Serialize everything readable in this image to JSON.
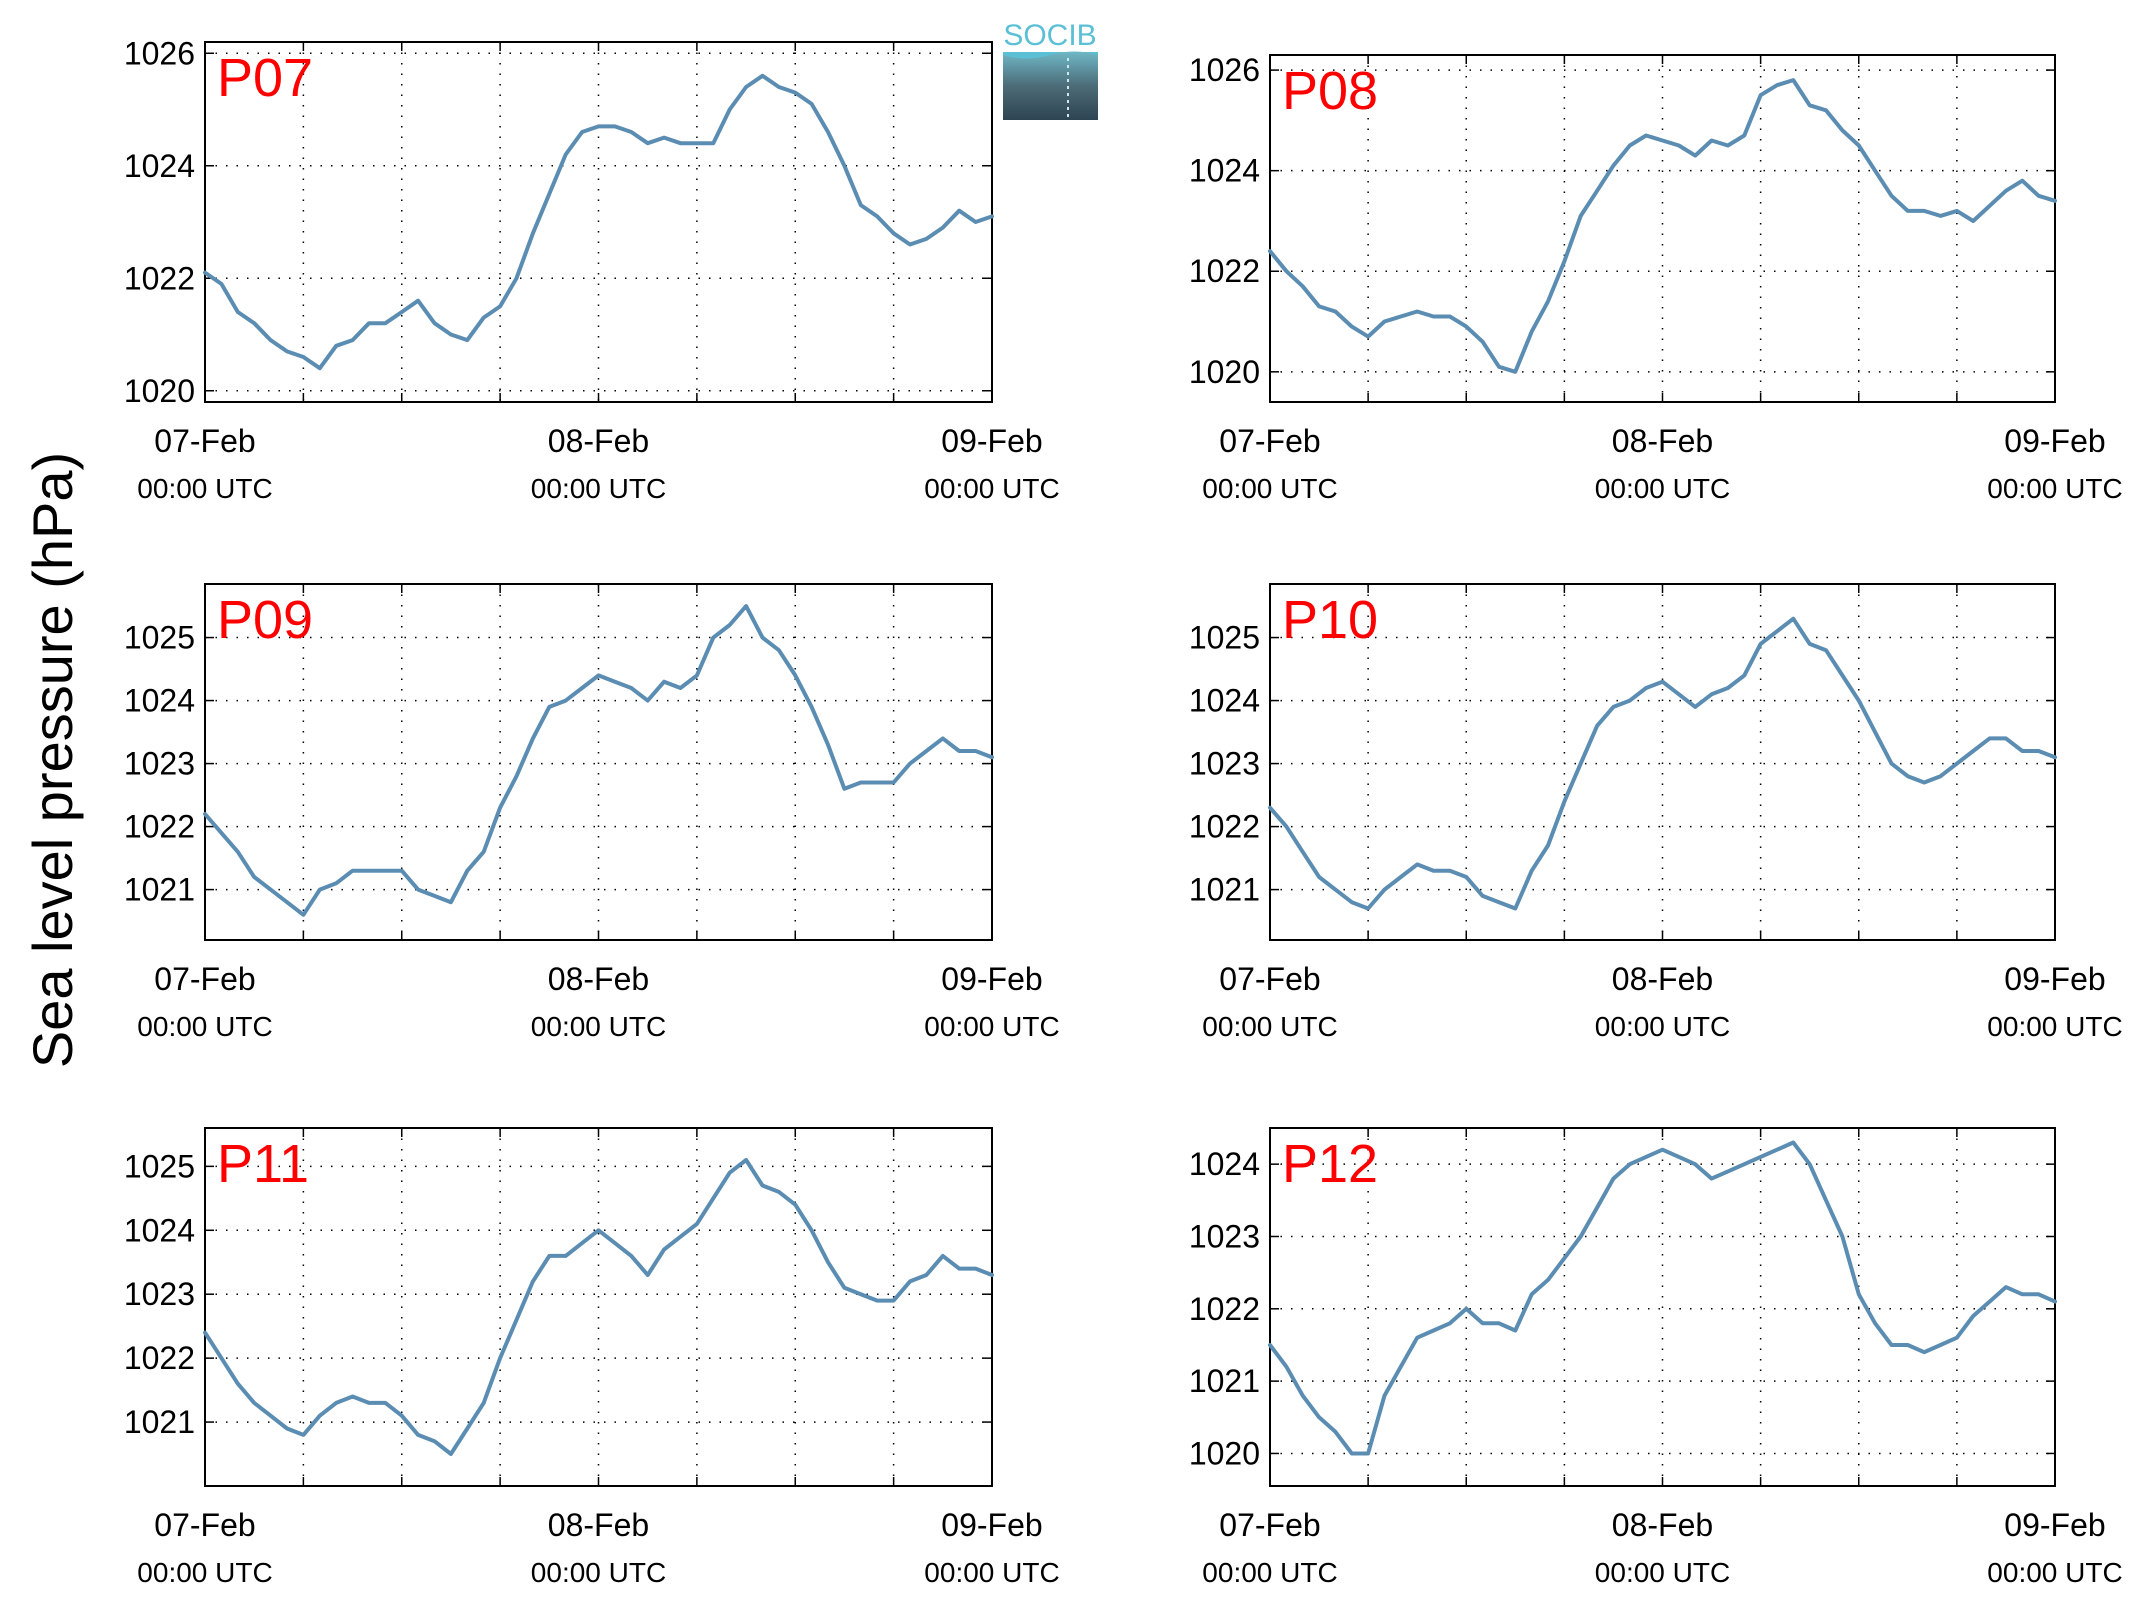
{
  "ylabel": "Sea level pressure (hPa)",
  "logo": {
    "text": "SOCIB",
    "color": "#5bc0d6"
  },
  "colors": {
    "line": "#5b8db3",
    "label": "#ff0000",
    "grid": "#000000"
  },
  "chart_data": [
    {
      "type": "line",
      "panel_label": "P07",
      "xlabels": [
        "07-Feb",
        "08-Feb",
        "09-Feb"
      ],
      "xsublabels": [
        "00:00 UTC",
        "00:00 UTC",
        "00:00 UTC"
      ],
      "xlim": [
        0,
        48
      ],
      "ylim": [
        1019.8,
        1026.2
      ],
      "yticks": [
        1020,
        1022,
        1024,
        1026
      ],
      "grid": true,
      "x": [
        0,
        1,
        2,
        3,
        4,
        5,
        6,
        7,
        8,
        9,
        10,
        11,
        12,
        13,
        14,
        15,
        16,
        17,
        18,
        19,
        20,
        21,
        22,
        23,
        24,
        25,
        26,
        27,
        28,
        29,
        30,
        31,
        32,
        33,
        34,
        35,
        36,
        37,
        38,
        39,
        40,
        41,
        42,
        43,
        44,
        45,
        46,
        47,
        48
      ],
      "y": [
        1022.1,
        1021.9,
        1021.4,
        1021.2,
        1020.9,
        1020.7,
        1020.6,
        1020.4,
        1020.8,
        1020.9,
        1021.2,
        1021.2,
        1021.4,
        1021.6,
        1021.2,
        1021.0,
        1020.9,
        1021.3,
        1021.5,
        1022.0,
        1022.8,
        1023.5,
        1024.2,
        1024.6,
        1024.7,
        1024.7,
        1024.6,
        1024.4,
        1024.5,
        1024.4,
        1024.4,
        1024.4,
        1025.0,
        1025.4,
        1025.6,
        1025.4,
        1025.3,
        1025.1,
        1024.6,
        1024.0,
        1023.3,
        1023.1,
        1022.8,
        1022.6,
        1022.7,
        1022.9,
        1023.2,
        1023.0,
        1023.1
      ]
    },
    {
      "type": "line",
      "panel_label": "P08",
      "xlabels": [
        "07-Feb",
        "08-Feb",
        "09-Feb"
      ],
      "xsublabels": [
        "00:00 UTC",
        "00:00 UTC",
        "00:00 UTC"
      ],
      "xlim": [
        0,
        48
      ],
      "ylim": [
        1019.4,
        1026.3
      ],
      "yticks": [
        1020,
        1022,
        1024,
        1026
      ],
      "grid": true,
      "x": [
        0,
        1,
        2,
        3,
        4,
        5,
        6,
        7,
        8,
        9,
        10,
        11,
        12,
        13,
        14,
        15,
        16,
        17,
        18,
        19,
        20,
        21,
        22,
        23,
        24,
        25,
        26,
        27,
        28,
        29,
        30,
        31,
        32,
        33,
        34,
        35,
        36,
        37,
        38,
        39,
        40,
        41,
        42,
        43,
        44,
        45,
        46,
        47,
        48
      ],
      "y": [
        1022.4,
        1022.0,
        1021.7,
        1021.3,
        1021.2,
        1020.9,
        1020.7,
        1021.0,
        1021.1,
        1021.2,
        1021.1,
        1021.1,
        1020.9,
        1020.6,
        1020.1,
        1020.0,
        1020.8,
        1021.4,
        1022.2,
        1023.1,
        1023.6,
        1024.1,
        1024.5,
        1024.7,
        1024.6,
        1024.5,
        1024.3,
        1024.6,
        1024.5,
        1024.7,
        1025.5,
        1025.7,
        1025.8,
        1025.3,
        1025.2,
        1024.8,
        1024.5,
        1024.0,
        1023.5,
        1023.2,
        1023.2,
        1023.1,
        1023.2,
        1023.0,
        1023.3,
        1023.6,
        1023.8,
        1023.5,
        1023.4
      ]
    },
    {
      "type": "line",
      "panel_label": "P09",
      "xlabels": [
        "07-Feb",
        "08-Feb",
        "09-Feb"
      ],
      "xsublabels": [
        "00:00 UTC",
        "00:00 UTC",
        "00:00 UTC"
      ],
      "xlim": [
        0,
        48
      ],
      "ylim": [
        1020.2,
        1025.85
      ],
      "yticks": [
        1021,
        1022,
        1023,
        1024,
        1025
      ],
      "grid": true,
      "x": [
        0,
        1,
        2,
        3,
        4,
        5,
        6,
        7,
        8,
        9,
        10,
        11,
        12,
        13,
        14,
        15,
        16,
        17,
        18,
        19,
        20,
        21,
        22,
        23,
        24,
        25,
        26,
        27,
        28,
        29,
        30,
        31,
        32,
        33,
        34,
        35,
        36,
        37,
        38,
        39,
        40,
        41,
        42,
        43,
        44,
        45,
        46,
        47,
        48
      ],
      "y": [
        1022.2,
        1021.9,
        1021.6,
        1021.2,
        1021.0,
        1020.8,
        1020.6,
        1021.0,
        1021.1,
        1021.3,
        1021.3,
        1021.3,
        1021.3,
        1021.0,
        1020.9,
        1020.8,
        1021.3,
        1021.6,
        1022.3,
        1022.8,
        1023.4,
        1023.9,
        1024.0,
        1024.2,
        1024.4,
        1024.3,
        1024.2,
        1024.0,
        1024.3,
        1024.2,
        1024.4,
        1025.0,
        1025.2,
        1025.5,
        1025.0,
        1024.8,
        1024.4,
        1023.9,
        1023.3,
        1022.6,
        1022.7,
        1022.7,
        1022.7,
        1023.0,
        1023.2,
        1023.4,
        1023.2,
        1023.2,
        1023.1
      ]
    },
    {
      "type": "line",
      "panel_label": "P10",
      "xlabels": [
        "07-Feb",
        "08-Feb",
        "09-Feb"
      ],
      "xsublabels": [
        "00:00 UTC",
        "00:00 UTC",
        "00:00 UTC"
      ],
      "xlim": [
        0,
        48
      ],
      "ylim": [
        1020.2,
        1025.85
      ],
      "yticks": [
        1021,
        1022,
        1023,
        1024,
        1025
      ],
      "grid": true,
      "x": [
        0,
        1,
        2,
        3,
        4,
        5,
        6,
        7,
        8,
        9,
        10,
        11,
        12,
        13,
        14,
        15,
        16,
        17,
        18,
        19,
        20,
        21,
        22,
        23,
        24,
        25,
        26,
        27,
        28,
        29,
        30,
        31,
        32,
        33,
        34,
        35,
        36,
        37,
        38,
        39,
        40,
        41,
        42,
        43,
        44,
        45,
        46,
        47,
        48
      ],
      "y": [
        1022.3,
        1022.0,
        1021.6,
        1021.2,
        1021.0,
        1020.8,
        1020.7,
        1021.0,
        1021.2,
        1021.4,
        1021.3,
        1021.3,
        1021.2,
        1020.9,
        1020.8,
        1020.7,
        1021.3,
        1021.7,
        1022.4,
        1023.0,
        1023.6,
        1023.9,
        1024.0,
        1024.2,
        1024.3,
        1024.1,
        1023.9,
        1024.1,
        1024.2,
        1024.4,
        1024.9,
        1025.1,
        1025.3,
        1024.9,
        1024.8,
        1024.4,
        1024.0,
        1023.5,
        1023.0,
        1022.8,
        1022.7,
        1022.8,
        1023.0,
        1023.2,
        1023.4,
        1023.4,
        1023.2,
        1023.2,
        1023.1
      ]
    },
    {
      "type": "line",
      "panel_label": "P11",
      "xlabels": [
        "07-Feb",
        "08-Feb",
        "09-Feb"
      ],
      "xsublabels": [
        "00:00 UTC",
        "00:00 UTC",
        "00:00 UTC"
      ],
      "xlim": [
        0,
        48
      ],
      "ylim": [
        1020.0,
        1025.6
      ],
      "yticks": [
        1021,
        1022,
        1023,
        1024,
        1025
      ],
      "grid": true,
      "x": [
        0,
        1,
        2,
        3,
        4,
        5,
        6,
        7,
        8,
        9,
        10,
        11,
        12,
        13,
        14,
        15,
        16,
        17,
        18,
        19,
        20,
        21,
        22,
        23,
        24,
        25,
        26,
        27,
        28,
        29,
        30,
        31,
        32,
        33,
        34,
        35,
        36,
        37,
        38,
        39,
        40,
        41,
        42,
        43,
        44,
        45,
        46,
        47,
        48
      ],
      "y": [
        1022.4,
        1022.0,
        1021.6,
        1021.3,
        1021.1,
        1020.9,
        1020.8,
        1021.1,
        1021.3,
        1021.4,
        1021.3,
        1021.3,
        1021.1,
        1020.8,
        1020.7,
        1020.5,
        1020.9,
        1021.3,
        1022.0,
        1022.6,
        1023.2,
        1023.6,
        1023.6,
        1023.8,
        1024.0,
        1023.8,
        1023.6,
        1023.3,
        1023.7,
        1023.9,
        1024.1,
        1024.5,
        1024.9,
        1025.1,
        1024.7,
        1024.6,
        1024.4,
        1024.0,
        1023.5,
        1023.1,
        1023.0,
        1022.9,
        1022.9,
        1023.2,
        1023.3,
        1023.6,
        1023.4,
        1023.4,
        1023.3
      ]
    },
    {
      "type": "line",
      "panel_label": "P12",
      "xlabels": [
        "07-Feb",
        "08-Feb",
        "09-Feb"
      ],
      "xsublabels": [
        "00:00 UTC",
        "00:00 UTC",
        "00:00 UTC"
      ],
      "xlim": [
        0,
        48
      ],
      "ylim": [
        1019.55,
        1024.5
      ],
      "yticks": [
        1020,
        1021,
        1022,
        1023,
        1024
      ],
      "grid": true,
      "x": [
        0,
        1,
        2,
        3,
        4,
        5,
        6,
        7,
        8,
        9,
        10,
        11,
        12,
        13,
        14,
        15,
        16,
        17,
        18,
        19,
        20,
        21,
        22,
        23,
        24,
        25,
        26,
        27,
        28,
        29,
        30,
        31,
        32,
        33,
        34,
        35,
        36,
        37,
        38,
        39,
        40,
        41,
        42,
        43,
        44,
        45,
        46,
        47,
        48
      ],
      "y": [
        1021.5,
        1021.2,
        1020.8,
        1020.5,
        1020.3,
        1020.0,
        1020.0,
        1020.8,
        1021.2,
        1021.6,
        1021.7,
        1021.8,
        1022.0,
        1021.8,
        1021.8,
        1021.7,
        1022.2,
        1022.4,
        1022.7,
        1023.0,
        1023.4,
        1023.8,
        1024.0,
        1024.1,
        1024.2,
        1024.1,
        1024.0,
        1023.8,
        1023.9,
        1024.0,
        1024.1,
        1024.2,
        1024.3,
        1024.0,
        1023.5,
        1023.0,
        1022.2,
        1021.8,
        1021.5,
        1021.5,
        1021.4,
        1021.5,
        1021.6,
        1021.9,
        1022.1,
        1022.3,
        1022.2,
        1022.2,
        1022.1
      ]
    }
  ]
}
